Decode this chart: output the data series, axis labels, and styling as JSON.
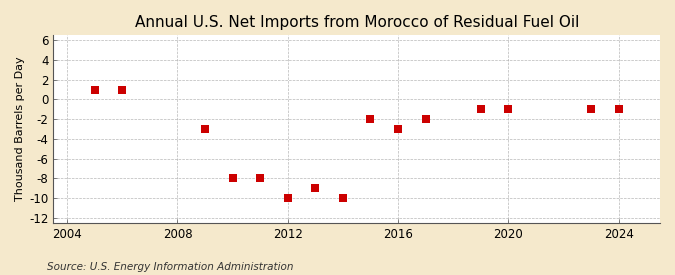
{
  "title": "Annual U.S. Net Imports from Morocco of Residual Fuel Oil",
  "ylabel": "Thousand Barrels per Day",
  "source": "Source: U.S. Energy Information Administration",
  "outer_bg": "#f5e9cc",
  "plot_bg": "#ffffff",
  "years": [
    2005,
    2006,
    2009,
    2010,
    2011,
    2012,
    2013,
    2014,
    2015,
    2016,
    2017,
    2019,
    2020,
    2023,
    2024
  ],
  "values": [
    1,
    1,
    -3,
    -8,
    -8,
    -10,
    -9,
    -10,
    -2,
    -3,
    -2,
    -1,
    -1,
    -1,
    -1
  ],
  "marker_color": "#cc0000",
  "marker_size": 30,
  "xlim": [
    2003.5,
    2025.5
  ],
  "ylim": [
    -12.5,
    6.5
  ],
  "yticks": [
    6,
    4,
    2,
    0,
    -2,
    -4,
    -6,
    -8,
    -10,
    -12
  ],
  "xticks": [
    2004,
    2008,
    2012,
    2016,
    2020,
    2024
  ],
  "grid_color": "#999999",
  "title_fontsize": 11,
  "label_fontsize": 8,
  "tick_fontsize": 8.5,
  "source_fontsize": 7.5
}
